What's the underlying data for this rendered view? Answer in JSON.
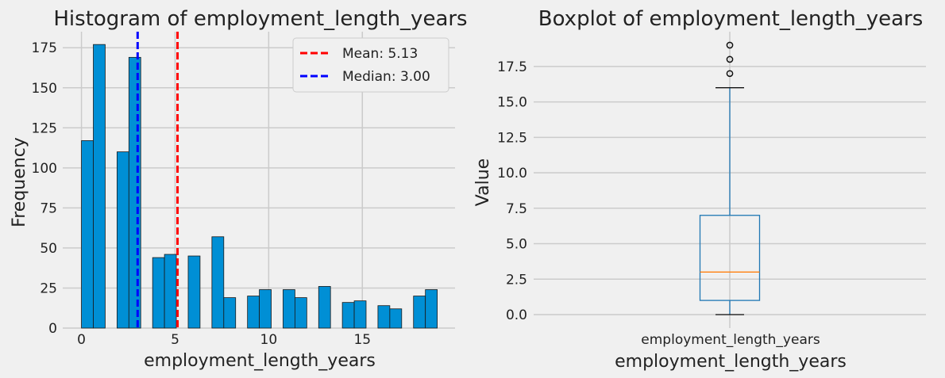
{
  "colors": {
    "background": "#f0f0f0",
    "grid": "#cbcbcb",
    "bar": "#008fd5",
    "mean_line": "#ff0000",
    "median_line": "#0000ff",
    "box": "#1f77b4",
    "box_median": "#ff7f0e"
  },
  "chart_data": [
    {
      "type": "bar",
      "subtype": "histogram",
      "title": "Histogram of employment_length_years",
      "xlabel": "employment_length_years",
      "ylabel": "Frequency",
      "xlim": [
        -1,
        19.95
      ],
      "ylim": [
        0,
        185
      ],
      "xticks": [
        0,
        5,
        10,
        15
      ],
      "yticks": [
        0,
        25,
        50,
        75,
        100,
        125,
        150,
        175
      ],
      "bin_width": 0.633,
      "bins": [
        {
          "x0": 0.0,
          "value": 117
        },
        {
          "x0": 0.633,
          "value": 177
        },
        {
          "x0": 1.9,
          "value": 110
        },
        {
          "x0": 2.533,
          "value": 169
        },
        {
          "x0": 3.8,
          "value": 44
        },
        {
          "x0": 4.433,
          "value": 46
        },
        {
          "x0": 5.7,
          "value": 45
        },
        {
          "x0": 6.967,
          "value": 57
        },
        {
          "x0": 7.6,
          "value": 19
        },
        {
          "x0": 8.867,
          "value": 20
        },
        {
          "x0": 9.5,
          "value": 24
        },
        {
          "x0": 10.767,
          "value": 24
        },
        {
          "x0": 11.4,
          "value": 19
        },
        {
          "x0": 12.667,
          "value": 26
        },
        {
          "x0": 13.933,
          "value": 16
        },
        {
          "x0": 14.567,
          "value": 17
        },
        {
          "x0": 15.833,
          "value": 14
        },
        {
          "x0": 16.467,
          "value": 12
        },
        {
          "x0": 17.733,
          "value": 20
        },
        {
          "x0": 18.367,
          "value": 24
        }
      ],
      "reference_lines": [
        {
          "name": "mean",
          "value": 5.13,
          "label": "Mean: 5.13"
        },
        {
          "name": "median",
          "value": 3.0,
          "label": "Median: 3.00"
        }
      ],
      "legend": "top-right"
    },
    {
      "type": "boxplot",
      "title": "Boxplot of employment_length_years",
      "xlabel": "employment_length_years",
      "ylabel": "Value",
      "category": "employment_length_years",
      "ylim": [
        -0.95,
        19.95
      ],
      "yticks": [
        "0.0",
        "2.5",
        "5.0",
        "7.5",
        "10.0",
        "12.5",
        "15.0",
        "17.5"
      ],
      "ytick_values": [
        0,
        2.5,
        5,
        7.5,
        10,
        12.5,
        15,
        17.5
      ],
      "whisker_low": 0,
      "q1": 1,
      "median": 3,
      "q3": 7,
      "whisker_high": 16,
      "outliers": [
        17,
        18,
        19
      ]
    }
  ]
}
